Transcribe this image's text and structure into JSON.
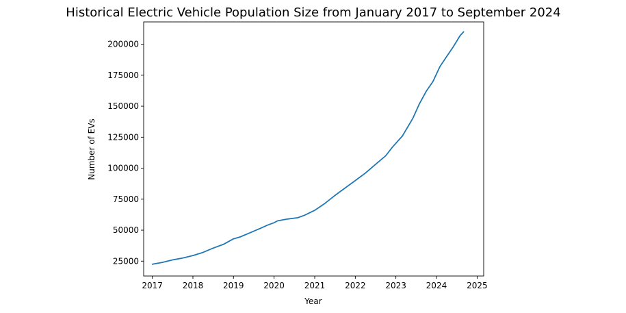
{
  "chart_data": {
    "type": "line",
    "title": "Historical Electric Vehicle Population Size from January 2017 to September 2024",
    "xlabel": "Year",
    "ylabel": "Number of EVs",
    "grid": false,
    "legend": "none",
    "xlim": [
      "2016-10-15",
      "2025-03-01"
    ],
    "ylim": [
      13000,
      218000
    ],
    "x_ticks": [
      "2017",
      "2018",
      "2019",
      "2020",
      "2021",
      "2022",
      "2023",
      "2024",
      "2025"
    ],
    "y_ticks": [
      25000,
      50000,
      75000,
      100000,
      125000,
      150000,
      175000,
      200000
    ],
    "series": [
      {
        "color": "#1f77b4",
        "x": [
          "2017-01",
          "2017-04",
          "2017-07",
          "2017-10",
          "2018-01",
          "2018-04",
          "2018-07",
          "2018-10",
          "2019-01",
          "2019-03",
          "2019-06",
          "2019-09",
          "2019-11",
          "2020-01",
          "2020-02",
          "2020-05",
          "2020-08",
          "2020-10",
          "2021-01",
          "2021-04",
          "2021-07",
          "2021-10",
          "2022-01",
          "2022-04",
          "2022-07",
          "2022-10",
          "2022-12",
          "2023-03",
          "2023-06",
          "2023-08",
          "2023-10",
          "2023-12",
          "2024-02",
          "2024-04",
          "2024-06",
          "2024-08",
          "2024-09"
        ],
        "values": [
          22500,
          24000,
          26000,
          27500,
          29500,
          32000,
          35500,
          38500,
          43000,
          44500,
          48000,
          51500,
          54000,
          56000,
          57500,
          59000,
          60000,
          62000,
          66000,
          71500,
          78000,
          84000,
          90000,
          96000,
          103000,
          110000,
          117000,
          126000,
          140000,
          152000,
          162000,
          170000,
          182000,
          190000,
          198000,
          207000,
          210000
        ]
      }
    ]
  }
}
